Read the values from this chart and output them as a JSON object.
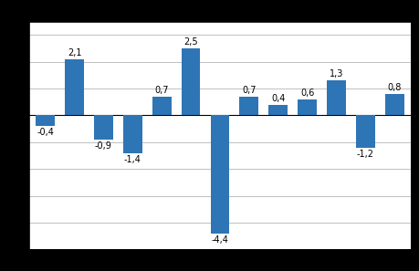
{
  "values": [
    -0.4,
    2.1,
    -0.9,
    -1.4,
    0.7,
    2.5,
    -4.4,
    0.7,
    0.4,
    0.6,
    1.3,
    -1.2,
    0.8
  ],
  "bar_color": "#2E75B6",
  "ylim": [
    -5.0,
    3.5
  ],
  "yticks": [
    -4.0,
    -3.0,
    -2.0,
    -1.0,
    0.0,
    1.0,
    2.0,
    3.0
  ],
  "background_color": "#FFFFFF",
  "outer_background": "#000000",
  "label_fontsize": 7.0,
  "label_color": "#000000",
  "bar_width": 0.65,
  "grid_color": "#C0C0C0",
  "grid_linewidth": 0.7
}
